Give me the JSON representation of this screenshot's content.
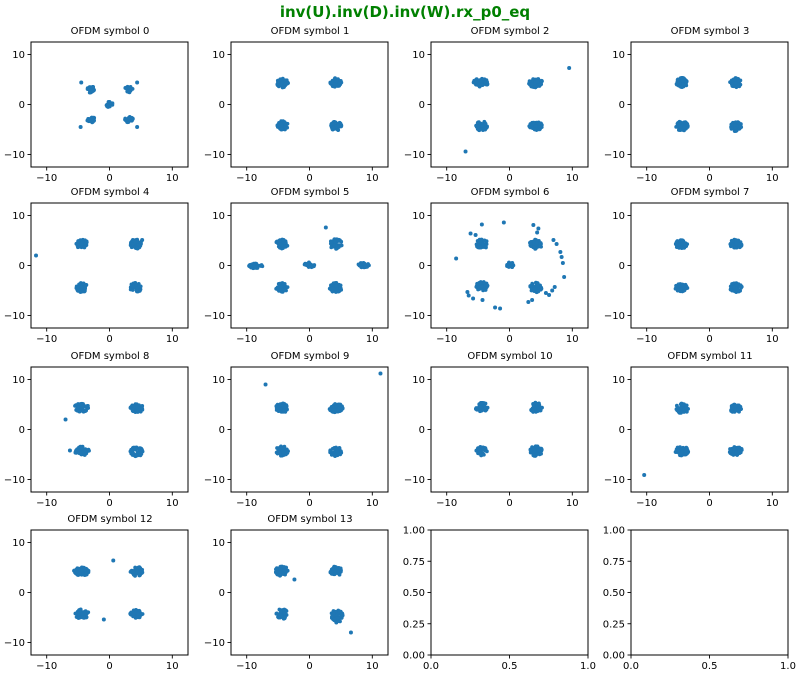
{
  "figure": {
    "title": "inv(U).inv(D).inv(W).rx_p0_eq",
    "title_color": "#008000",
    "background": "#ffffff",
    "spine_color": "#000000"
  },
  "chart_data": {
    "type": "scatter",
    "marker_color": "#1f77b4",
    "grid": false,
    "legend": "none",
    "layout": {
      "rows": 4,
      "cols": 4
    },
    "subplots": [
      {
        "title": "OFDM symbol 0",
        "xlim": [
          -12.5,
          12.5
        ],
        "ylim": [
          -12.5,
          12.5
        ],
        "xtick_values": [
          -10,
          0,
          10
        ],
        "xtick_labels": [
          "−10",
          "0",
          "10"
        ],
        "ytick_values": [
          10,
          0,
          -10
        ],
        "ytick_labels": [
          "10",
          "0",
          "−10"
        ],
        "clusters": [
          {
            "x": 0,
            "y": 0,
            "r": 0.55,
            "n": 20
          },
          {
            "x": -3.0,
            "y": 3.0,
            "r": 0.65,
            "n": 24
          },
          {
            "x": 3.1,
            "y": 3.0,
            "r": 0.65,
            "n": 24
          },
          {
            "x": -3.0,
            "y": -3.0,
            "r": 0.65,
            "n": 24
          },
          {
            "x": 3.1,
            "y": -3.0,
            "r": 0.65,
            "n": 24
          }
        ],
        "outliers": [
          [
            -4.5,
            4.4
          ],
          [
            4.4,
            4.4
          ],
          [
            -4.6,
            -4.5
          ],
          [
            4.4,
            -4.5
          ]
        ]
      },
      {
        "title": "OFDM symbol 1",
        "xlim": [
          -12.5,
          12.5
        ],
        "ylim": [
          -12.5,
          12.5
        ],
        "xtick_values": [
          -10,
          0,
          10
        ],
        "xtick_labels": [
          "−10",
          "0",
          "10"
        ],
        "ytick_values": [
          10,
          0,
          -10
        ],
        "ytick_labels": [
          "10",
          "0",
          "−10"
        ],
        "clusters": [
          {
            "x": -4.3,
            "y": 4.3,
            "r": 0.9
          },
          {
            "x": 4.2,
            "y": 4.4,
            "r": 0.9
          },
          {
            "x": -4.3,
            "y": -4.2,
            "r": 0.9
          },
          {
            "x": 4.2,
            "y": -4.3,
            "r": 0.9
          }
        ],
        "outliers": []
      },
      {
        "title": "OFDM symbol 2",
        "xlim": [
          -12.5,
          12.5
        ],
        "ylim": [
          -12.5,
          12.5
        ],
        "xtick_values": [
          -10,
          0,
          10
        ],
        "xtick_labels": [
          "−10",
          "0",
          "10"
        ],
        "ytick_values": [
          10,
          0,
          -10
        ],
        "ytick_labels": [
          "10",
          "0",
          "−10"
        ],
        "clusters": [
          {
            "x": -4.5,
            "y": 4.4,
            "rx": 1.25,
            "ry": 0.85
          },
          {
            "x": 4.2,
            "y": 4.3,
            "rx": 1.15,
            "ry": 0.95
          },
          {
            "x": -4.4,
            "y": -4.3,
            "r": 0.95
          },
          {
            "x": 4.2,
            "y": -4.3,
            "rx": 1.05,
            "ry": 0.85
          }
        ],
        "outliers": [
          [
            9.5,
            7.3
          ],
          [
            -7.0,
            -9.4
          ]
        ]
      },
      {
        "title": "OFDM symbol 3",
        "xlim": [
          -12.5,
          12.5
        ],
        "ylim": [
          -12.5,
          12.5
        ],
        "xtick_values": [
          -10,
          0,
          10
        ],
        "xtick_labels": [
          "−10",
          "0",
          "10"
        ],
        "ytick_values": [
          10,
          0,
          -10
        ],
        "ytick_labels": [
          "10",
          "0",
          "−10"
        ],
        "clusters": [
          {
            "x": -4.4,
            "y": 4.4,
            "r": 0.95
          },
          {
            "x": 4.2,
            "y": 4.4,
            "r": 0.95
          },
          {
            "x": -4.4,
            "y": -4.3,
            "r": 0.95
          },
          {
            "x": 4.2,
            "y": -4.4,
            "r": 0.95
          }
        ],
        "outliers": []
      },
      {
        "title": "OFDM symbol 4",
        "xlim": [
          -12.5,
          12.5
        ],
        "ylim": [
          -12.5,
          12.5
        ],
        "xtick_values": [
          -10,
          0,
          10
        ],
        "xtick_labels": [
          "−10",
          "0",
          "10"
        ],
        "ytick_values": [
          10,
          0,
          -10
        ],
        "ytick_labels": [
          "10",
          "0",
          "−10"
        ],
        "clusters": [
          {
            "x": -4.4,
            "y": 4.3,
            "r": 0.95
          },
          {
            "x": 4.2,
            "y": 4.3,
            "r": 0.95
          },
          {
            "x": -4.4,
            "y": -4.4,
            "r": 0.95
          },
          {
            "x": 4.2,
            "y": -4.4,
            "r": 0.95
          }
        ],
        "outliers": [
          [
            -11.7,
            2.0
          ],
          [
            5.2,
            5.1
          ]
        ]
      },
      {
        "title": "OFDM symbol 5",
        "xlim": [
          -12.5,
          12.5
        ],
        "ylim": [
          -12.5,
          12.5
        ],
        "xtick_values": [
          -10,
          0,
          10
        ],
        "xtick_labels": [
          "−10",
          "0",
          "10"
        ],
        "ytick_values": [
          10,
          0,
          -10
        ],
        "ytick_labels": [
          "10",
          "0",
          "−10"
        ],
        "clusters": [
          {
            "x": -4.4,
            "y": 4.3,
            "r": 0.95
          },
          {
            "x": 4.2,
            "y": 4.3,
            "r": 1.0
          },
          {
            "x": -4.4,
            "y": -4.4,
            "r": 0.95
          },
          {
            "x": 4.2,
            "y": -4.4,
            "r": 1.0
          },
          {
            "x": -8.6,
            "y": -0.1,
            "rx": 1.1,
            "ry": 0.5,
            "n": 28
          },
          {
            "x": 0.0,
            "y": 0.1,
            "rx": 0.8,
            "ry": 0.55,
            "n": 26
          },
          {
            "x": 8.6,
            "y": 0.1,
            "rx": 0.9,
            "ry": 0.5,
            "n": 26
          }
        ],
        "outliers": [
          [
            2.6,
            7.6
          ]
        ]
      },
      {
        "title": "OFDM symbol 6",
        "xlim": [
          -12.5,
          12.5
        ],
        "ylim": [
          -12.5,
          12.5
        ],
        "xtick_values": [
          -10,
          0,
          10
        ],
        "xtick_labels": [
          "−10",
          "0",
          "10"
        ],
        "ytick_values": [
          10,
          0,
          -10
        ],
        "ytick_labels": [
          "10",
          "0",
          "−10"
        ],
        "clusters": [
          {
            "x": -4.4,
            "y": 4.3,
            "r": 0.95
          },
          {
            "x": 4.2,
            "y": 4.3,
            "r": 1.0
          },
          {
            "x": -4.4,
            "y": -4.2,
            "r": 0.95
          },
          {
            "x": 4.2,
            "y": -4.4,
            "r": 1.0
          },
          {
            "x": 0.1,
            "y": 0.1,
            "r": 0.55,
            "n": 18
          }
        ],
        "outliers": [
          [
            -4.4,
            8.2
          ],
          [
            -0.9,
            8.6
          ],
          [
            3.8,
            8.1
          ],
          [
            4.6,
            7.4
          ],
          [
            -6.2,
            6.4
          ],
          [
            -5.4,
            6.1
          ],
          [
            4.4,
            6.6
          ],
          [
            7.0,
            5.1
          ],
          [
            7.5,
            4.3
          ],
          [
            8.1,
            2.7
          ],
          [
            8.3,
            1.7
          ],
          [
            -8.5,
            1.4
          ],
          [
            8.5,
            0.5
          ],
          [
            8.7,
            -2.3
          ],
          [
            7.2,
            -4.3
          ],
          [
            6.8,
            -5.0
          ],
          [
            5.8,
            -5.5
          ],
          [
            6.3,
            -5.9
          ],
          [
            3.0,
            -7.3
          ],
          [
            3.6,
            -6.9
          ],
          [
            -1.5,
            -8.6
          ],
          [
            -2.3,
            -8.4
          ],
          [
            -5.8,
            -6.6
          ],
          [
            -6.5,
            -6.0
          ],
          [
            -4.3,
            -6.9
          ],
          [
            -6.7,
            -5.3
          ]
        ]
      },
      {
        "title": "OFDM symbol 7",
        "xlim": [
          -12.5,
          12.5
        ],
        "ylim": [
          -12.5,
          12.5
        ],
        "xtick_values": [
          -10,
          0,
          10
        ],
        "xtick_labels": [
          "−10",
          "0",
          "10"
        ],
        "ytick_values": [
          10,
          0,
          -10
        ],
        "ytick_labels": [
          "10",
          "0",
          "−10"
        ],
        "clusters": [
          {
            "x": -4.5,
            "y": 4.3,
            "r": 0.95
          },
          {
            "x": 4.2,
            "y": 4.3,
            "r": 0.95
          },
          {
            "x": -4.5,
            "y": -4.3,
            "r": 1.0
          },
          {
            "x": 4.2,
            "y": -4.4,
            "r": 0.95
          }
        ],
        "outliers": []
      },
      {
        "title": "OFDM symbol 8",
        "xlim": [
          -12.5,
          12.5
        ],
        "ylim": [
          -12.5,
          12.5
        ],
        "xtick_values": [
          -10,
          0,
          10
        ],
        "xtick_labels": [
          "−10",
          "0",
          "10"
        ],
        "ytick_values": [
          10,
          0,
          -10
        ],
        "ytick_labels": [
          "10",
          "0",
          "−10"
        ],
        "clusters": [
          {
            "x": -4.5,
            "y": 4.4,
            "rx": 1.15,
            "ry": 0.9
          },
          {
            "x": 4.3,
            "y": 4.3,
            "r": 1.0
          },
          {
            "x": -4.4,
            "y": -4.3,
            "rx": 1.15,
            "ry": 0.9
          },
          {
            "x": 4.3,
            "y": -4.4,
            "r": 1.0
          }
        ],
        "outliers": [
          [
            -7.0,
            2.0
          ],
          [
            -6.3,
            -4.2
          ]
        ]
      },
      {
        "title": "OFDM symbol 9",
        "xlim": [
          -12.5,
          12.5
        ],
        "ylim": [
          -12.5,
          12.5
        ],
        "xtick_values": [
          -10,
          0,
          10
        ],
        "xtick_labels": [
          "−10",
          "0",
          "10"
        ],
        "ytick_values": [
          10,
          0,
          -10
        ],
        "ytick_labels": [
          "10",
          "0",
          "−10"
        ],
        "clusters": [
          {
            "x": -4.4,
            "y": 4.3,
            "r": 0.95
          },
          {
            "x": 4.2,
            "y": 4.3,
            "rx": 1.1,
            "ry": 0.95
          },
          {
            "x": -4.4,
            "y": -4.3,
            "r": 1.0
          },
          {
            "x": 4.2,
            "y": -4.4,
            "r": 0.95
          }
        ],
        "outliers": [
          [
            -7.0,
            9.0
          ],
          [
            11.3,
            11.2
          ]
        ]
      },
      {
        "title": "OFDM symbol 10",
        "xlim": [
          -12.5,
          12.5
        ],
        "ylim": [
          -12.5,
          12.5
        ],
        "xtick_values": [
          -10,
          0,
          10
        ],
        "xtick_labels": [
          "−10",
          "0",
          "10"
        ],
        "ytick_values": [
          10,
          0,
          -10
        ],
        "ytick_labels": [
          "10",
          "0",
          "−10"
        ],
        "clusters": [
          {
            "x": -4.4,
            "y": 4.4,
            "r": 1.0
          },
          {
            "x": 4.2,
            "y": 4.4,
            "r": 1.0
          },
          {
            "x": -4.4,
            "y": -4.3,
            "r": 0.9
          },
          {
            "x": 4.2,
            "y": -4.3,
            "r": 1.0
          }
        ],
        "outliers": []
      },
      {
        "title": "OFDM symbol 11",
        "xlim": [
          -12.5,
          12.5
        ],
        "ylim": [
          -12.5,
          12.5
        ],
        "xtick_values": [
          -10,
          0,
          10
        ],
        "xtick_labels": [
          "−10",
          "0",
          "10"
        ],
        "ytick_values": [
          10,
          0,
          -10
        ],
        "ytick_labels": [
          "10",
          "0",
          "−10"
        ],
        "clusters": [
          {
            "x": -4.4,
            "y": 4.2,
            "rx": 1.0,
            "ry": 1.1
          },
          {
            "x": 4.2,
            "y": 4.2,
            "r": 0.9
          },
          {
            "x": -4.4,
            "y": -4.3,
            "rx": 1.1,
            "ry": 0.9
          },
          {
            "x": 4.2,
            "y": -4.3,
            "rx": 1.1,
            "ry": 0.85
          }
        ],
        "outliers": [
          [
            -10.4,
            -9.1
          ]
        ]
      },
      {
        "title": "OFDM symbol 12",
        "xlim": [
          -12.5,
          12.5
        ],
        "ylim": [
          -12.5,
          12.5
        ],
        "xtick_values": [
          -10,
          0,
          10
        ],
        "xtick_labels": [
          "−10",
          "0",
          "10"
        ],
        "ytick_values": [
          10,
          0,
          -10
        ],
        "ytick_labels": [
          "10",
          "0",
          "−10"
        ],
        "clusters": [
          {
            "x": -4.5,
            "y": 4.2,
            "rx": 1.2,
            "ry": 0.9
          },
          {
            "x": 4.3,
            "y": 4.2,
            "r": 1.0
          },
          {
            "x": -4.4,
            "y": -4.3,
            "rx": 1.1,
            "ry": 0.95
          },
          {
            "x": 4.3,
            "y": -4.3,
            "rx": 1.0,
            "ry": 0.85
          }
        ],
        "outliers": [
          [
            0.6,
            6.4
          ],
          [
            -0.9,
            -5.4
          ]
        ]
      },
      {
        "title": "OFDM symbol 13",
        "xlim": [
          -12.5,
          12.5
        ],
        "ylim": [
          -12.5,
          12.5
        ],
        "xtick_values": [
          -10,
          0,
          10
        ],
        "xtick_labels": [
          "−10",
          "0",
          "10"
        ],
        "ytick_values": [
          10,
          0,
          -10
        ],
        "ytick_labels": [
          "10",
          "0",
          "−10"
        ],
        "clusters": [
          {
            "x": -4.4,
            "y": 4.3,
            "r": 1.0
          },
          {
            "x": 4.2,
            "y": 4.3,
            "r": 1.0
          },
          {
            "x": -4.4,
            "y": -4.3,
            "r": 1.0
          },
          {
            "x": 4.3,
            "y": -4.5,
            "r": 1.0
          },
          {
            "x": 4.4,
            "y": -5.6,
            "r": 0.5,
            "n": 10
          }
        ],
        "outliers": [
          [
            -2.4,
            2.6
          ],
          [
            6.6,
            -8.0
          ]
        ]
      },
      {
        "title": "",
        "empty": true,
        "xlim": [
          0,
          1
        ],
        "ylim": [
          0,
          1
        ],
        "xtick_values": [
          0,
          0.5,
          1
        ],
        "xtick_labels": [
          "0.0",
          "0.5",
          "1.0"
        ],
        "ytick_values": [
          1,
          0.75,
          0.5,
          0.25,
          0
        ],
        "ytick_labels": [
          "1.00",
          "0.75",
          "0.50",
          "0.25",
          "0.00"
        ],
        "clusters": [],
        "outliers": []
      },
      {
        "title": "",
        "empty": true,
        "xlim": [
          0,
          1
        ],
        "ylim": [
          0,
          1
        ],
        "xtick_values": [
          0,
          0.5,
          1
        ],
        "xtick_labels": [
          "0.0",
          "0.5",
          "1.0"
        ],
        "ytick_values": [
          1,
          0.75,
          0.5,
          0.25,
          0
        ],
        "ytick_labels": [
          "1.00",
          "0.75",
          "0.50",
          "0.25",
          "0.00"
        ],
        "clusters": [],
        "outliers": []
      }
    ]
  }
}
